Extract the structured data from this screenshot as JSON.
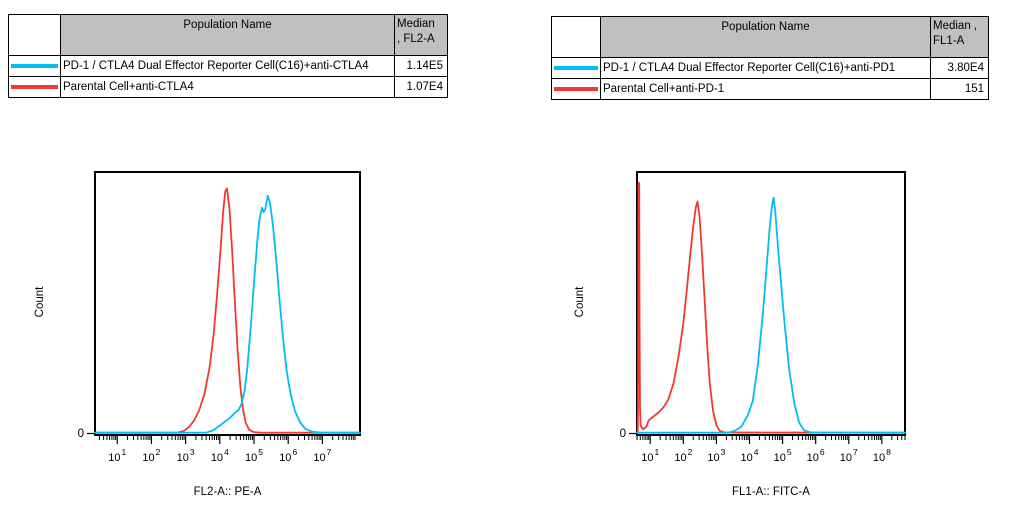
{
  "colors": {
    "series_cyan": "#00BDF2",
    "series_red": "#F2382E",
    "table_header_bg": "#C0C0C0",
    "border": "#000000",
    "background": "#FFFFFF"
  },
  "panels": [
    {
      "table": {
        "headers": {
          "population": "Population Name",
          "median": "Median\n, FL2-A"
        },
        "rows": [
          {
            "name": "PD-1 / CTLA4 Dual Effector Reporter Cell(C16)+anti-CTLA4",
            "median": "1.14E5",
            "color": "#00BDF2"
          },
          {
            "name": "Parental Cell+anti-CTLA4",
            "median": "1.07E4",
            "color": "#F2382E"
          }
        ]
      }
    },
    {
      "table": {
        "headers": {
          "population": "Population Name",
          "median": "Median ,\nFL1-A"
        },
        "rows": [
          {
            "name": "PD-1 / CTLA4 Dual Effector Reporter Cell(C16)+anti-PD1",
            "median": "3.80E4",
            "color": "#00BDF2"
          },
          {
            "name": "Parental Cell+anti-PD-1",
            "median": "151",
            "color": "#F2382E"
          }
        ]
      }
    }
  ],
  "chart_data": [
    {
      "type": "line",
      "subtype": "flow-cytometry-histogram-overlay",
      "title": "",
      "xlabel": "FL2-A:: PE-A",
      "ylabel": "Count",
      "y_axis_zero_label": "0",
      "x_scale": "log10",
      "x_domain_log10": [
        0.35,
        8.1
      ],
      "x_tick_exponents": [
        1,
        2,
        3,
        4,
        5,
        6,
        7
      ],
      "grid": false,
      "legend": "none (colors keyed to table above)",
      "series": [
        {
          "name": "Parental Cell+anti-CTLA4",
          "color": "#F2382E",
          "points_log10x_relcount": [
            [
              0.35,
              0.003
            ],
            [
              2.75,
              0.003
            ],
            [
              2.95,
              0.01
            ],
            [
              3.1,
              0.025
            ],
            [
              3.25,
              0.05
            ],
            [
              3.4,
              0.09
            ],
            [
              3.55,
              0.15
            ],
            [
              3.7,
              0.25
            ],
            [
              3.82,
              0.38
            ],
            [
              3.92,
              0.53
            ],
            [
              4.02,
              0.7
            ],
            [
              4.1,
              0.85
            ],
            [
              4.16,
              0.925
            ],
            [
              4.21,
              0.935
            ],
            [
              4.28,
              0.86
            ],
            [
              4.36,
              0.7
            ],
            [
              4.44,
              0.5
            ],
            [
              4.52,
              0.32
            ],
            [
              4.6,
              0.18
            ],
            [
              4.68,
              0.09
            ],
            [
              4.76,
              0.04
            ],
            [
              4.86,
              0.014
            ],
            [
              5.0,
              0.005
            ],
            [
              5.2,
              0.003
            ],
            [
              8.1,
              0.003
            ]
          ]
        },
        {
          "name": "PD-1 / CTLA4 Dual Effector Reporter Cell(C16)+anti-CTLA4",
          "color": "#00BDF2",
          "points_log10x_relcount": [
            [
              0.35,
              0.003
            ],
            [
              3.6,
              0.003
            ],
            [
              3.8,
              0.012
            ],
            [
              4.0,
              0.03
            ],
            [
              4.15,
              0.045
            ],
            [
              4.3,
              0.06
            ],
            [
              4.45,
              0.08
            ],
            [
              4.55,
              0.09
            ],
            [
              4.63,
              0.11
            ],
            [
              4.72,
              0.16
            ],
            [
              4.8,
              0.245
            ],
            [
              4.9,
              0.4
            ],
            [
              5.0,
              0.575
            ],
            [
              5.1,
              0.74
            ],
            [
              5.17,
              0.825
            ],
            [
              5.23,
              0.862
            ],
            [
              5.28,
              0.845
            ],
            [
              5.33,
              0.857
            ],
            [
              5.4,
              0.908
            ],
            [
              5.47,
              0.878
            ],
            [
              5.56,
              0.79
            ],
            [
              5.66,
              0.645
            ],
            [
              5.76,
              0.49
            ],
            [
              5.86,
              0.35
            ],
            [
              5.96,
              0.235
            ],
            [
              6.08,
              0.145
            ],
            [
              6.2,
              0.085
            ],
            [
              6.35,
              0.042
            ],
            [
              6.5,
              0.018
            ],
            [
              6.7,
              0.007
            ],
            [
              6.95,
              0.003
            ],
            [
              8.1,
              0.003
            ]
          ]
        }
      ]
    },
    {
      "type": "line",
      "subtype": "flow-cytometry-histogram-overlay",
      "title": "",
      "xlabel": "FL1-A:: FITC-A",
      "ylabel": "Count",
      "y_axis_zero_label": "0",
      "x_scale": "log10",
      "x_domain_log10": [
        0.6,
        8.7
      ],
      "x_tick_exponents": [
        1,
        2,
        3,
        4,
        5,
        6,
        7,
        8
      ],
      "grid": false,
      "legend": "none (colors keyed to table above)",
      "series": [
        {
          "name": "Parental Cell+anti-PD-1",
          "color": "#F2382E",
          "points_log10x_relcount": [
            [
              0.6,
              0.004
            ],
            [
              0.62,
              0.004
            ],
            [
              0.63,
              0.1
            ],
            [
              0.645,
              0.956
            ],
            [
              0.665,
              0.956
            ],
            [
              0.675,
              0.5
            ],
            [
              0.69,
              0.1
            ],
            [
              0.71,
              0.03
            ],
            [
              0.78,
              0.016
            ],
            [
              0.88,
              0.025
            ],
            [
              0.95,
              0.05
            ],
            [
              1.1,
              0.065
            ],
            [
              1.25,
              0.08
            ],
            [
              1.4,
              0.1
            ],
            [
              1.55,
              0.13
            ],
            [
              1.7,
              0.19
            ],
            [
              1.85,
              0.29
            ],
            [
              2.0,
              0.42
            ],
            [
              2.1,
              0.54
            ],
            [
              2.2,
              0.67
            ],
            [
              2.3,
              0.79
            ],
            [
              2.38,
              0.865
            ],
            [
              2.43,
              0.885
            ],
            [
              2.49,
              0.83
            ],
            [
              2.56,
              0.7
            ],
            [
              2.64,
              0.52
            ],
            [
              2.72,
              0.34
            ],
            [
              2.8,
              0.19
            ],
            [
              2.9,
              0.085
            ],
            [
              3.0,
              0.032
            ],
            [
              3.1,
              0.01
            ],
            [
              3.25,
              0.004
            ],
            [
              8.7,
              0.003
            ]
          ]
        },
        {
          "name": "PD-1 / CTLA4 Dual Effector Reporter Cell(C16)+anti-PD1",
          "color": "#00BDF2",
          "points_log10x_relcount": [
            [
              0.6,
              0.003
            ],
            [
              3.35,
              0.003
            ],
            [
              3.55,
              0.01
            ],
            [
              3.75,
              0.025
            ],
            [
              3.95,
              0.07
            ],
            [
              4.1,
              0.125
            ],
            [
              4.25,
              0.26
            ],
            [
              4.4,
              0.45
            ],
            [
              4.52,
              0.64
            ],
            [
              4.62,
              0.8
            ],
            [
              4.69,
              0.878
            ],
            [
              4.73,
              0.9
            ],
            [
              4.78,
              0.845
            ],
            [
              4.84,
              0.745
            ],
            [
              4.9,
              0.65
            ],
            [
              5.05,
              0.435
            ],
            [
              5.2,
              0.244
            ],
            [
              5.35,
              0.118
            ],
            [
              5.5,
              0.042
            ],
            [
              5.65,
              0.012
            ],
            [
              5.85,
              0.004
            ],
            [
              8.7,
              0.003
            ]
          ]
        }
      ]
    }
  ]
}
